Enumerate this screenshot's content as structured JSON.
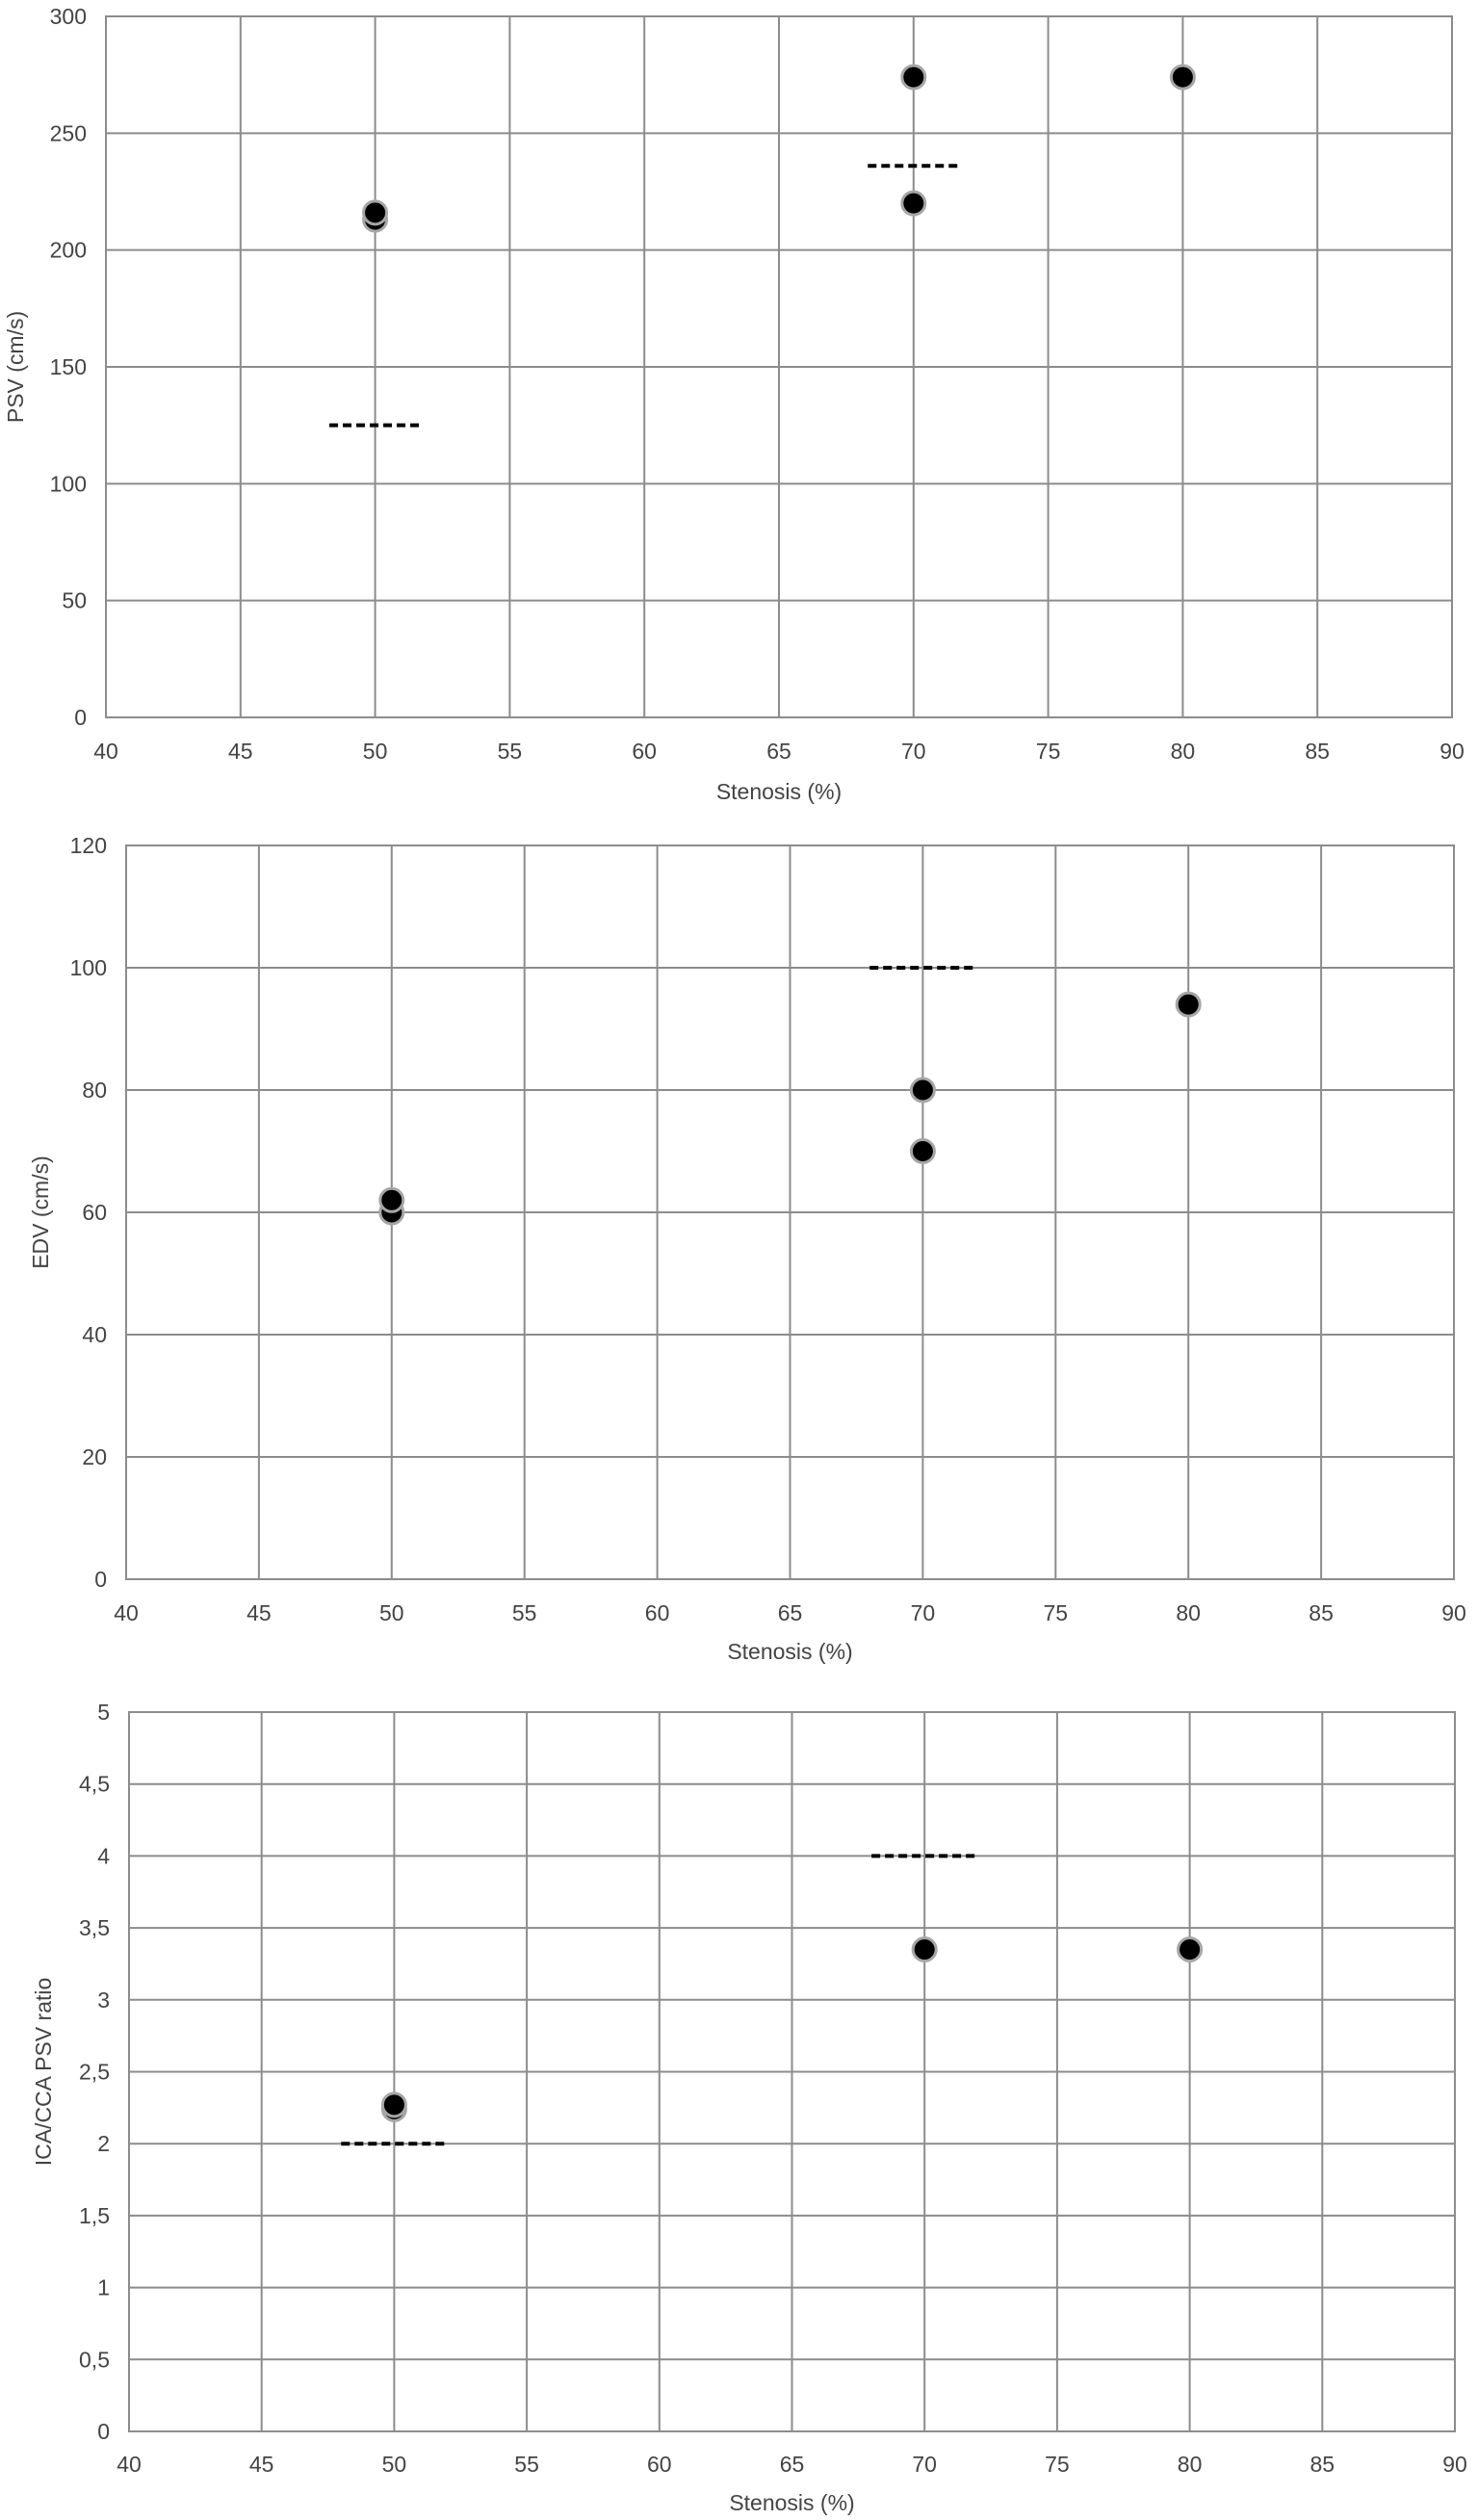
{
  "chart_data": [
    {
      "type": "scatter",
      "title": "",
      "xlabel": "Stenosis (%)",
      "ylabel": "PSV (cm/s)",
      "xlim": [
        40,
        90
      ],
      "ylim": [
        0,
        300
      ],
      "xticks": [
        40,
        45,
        50,
        55,
        60,
        65,
        70,
        75,
        80,
        85,
        90
      ],
      "yticks": [
        0,
        50,
        100,
        150,
        200,
        250,
        300
      ],
      "ytick_labels": [
        "0",
        "50",
        "100",
        "150",
        "200",
        "250",
        "300"
      ],
      "grid": true,
      "points": [
        {
          "x": 50,
          "y": 213
        },
        {
          "x": 50,
          "y": 216
        },
        {
          "x": 70,
          "y": 274
        },
        {
          "x": 70,
          "y": 220
        },
        {
          "x": 80,
          "y": 274
        }
      ],
      "thresholds": [
        {
          "x_from": 48.3,
          "x_to": 51.7,
          "y": 125
        },
        {
          "x_from": 68.3,
          "x_to": 71.7,
          "y": 236
        }
      ],
      "point_color": "#000000",
      "point_edge_color": "#a6a6a6",
      "threshold_color": "#000000",
      "grid_color": "#8c8c8c"
    },
    {
      "type": "scatter",
      "title": "",
      "xlabel": "Stenosis (%)",
      "ylabel": "EDV (cm/s)",
      "xlim": [
        40,
        90
      ],
      "ylim": [
        0,
        120
      ],
      "xticks": [
        40,
        45,
        50,
        55,
        60,
        65,
        70,
        75,
        80,
        85,
        90
      ],
      "yticks": [
        0,
        20,
        40,
        60,
        80,
        100,
        120
      ],
      "ytick_labels": [
        "0",
        "20",
        "40",
        "60",
        "80",
        "100",
        "120"
      ],
      "grid": true,
      "points": [
        {
          "x": 50,
          "y": 60
        },
        {
          "x": 50,
          "y": 62
        },
        {
          "x": 70,
          "y": 80
        },
        {
          "x": 70,
          "y": 70
        },
        {
          "x": 80,
          "y": 94
        }
      ],
      "thresholds": [
        {
          "x_from": 68,
          "x_to": 72,
          "y": 100
        }
      ],
      "point_color": "#000000",
      "point_edge_color": "#a6a6a6",
      "threshold_color": "#000000",
      "grid_color": "#8c8c8c"
    },
    {
      "type": "scatter",
      "title": "",
      "xlabel": "Stenosis (%)",
      "ylabel": "ICA/CCA PSV ratio",
      "xlim": [
        40,
        90
      ],
      "ylim": [
        0,
        5
      ],
      "xticks": [
        40,
        45,
        50,
        55,
        60,
        65,
        70,
        75,
        80,
        85,
        90
      ],
      "yticks": [
        0,
        0.5,
        1,
        1.5,
        2,
        2.5,
        3,
        3.5,
        4,
        4.5,
        5
      ],
      "ytick_labels": [
        "0",
        "0,5",
        "1",
        "1,5",
        "2",
        "2,5",
        "3",
        "3,5",
        "4",
        "4,5",
        "5"
      ],
      "grid": true,
      "points": [
        {
          "x": 50,
          "y": 2.24
        },
        {
          "x": 50,
          "y": 2.27
        },
        {
          "x": 70,
          "y": 3.35
        },
        {
          "x": 80,
          "y": 3.35
        }
      ],
      "thresholds": [
        {
          "x_from": 48,
          "x_to": 52,
          "y": 2
        },
        {
          "x_from": 68,
          "x_to": 72,
          "y": 4
        }
      ],
      "point_color": "#000000",
      "point_edge_color": "#a6a6a6",
      "threshold_color": "#000000",
      "grid_color": "#8c8c8c"
    }
  ]
}
